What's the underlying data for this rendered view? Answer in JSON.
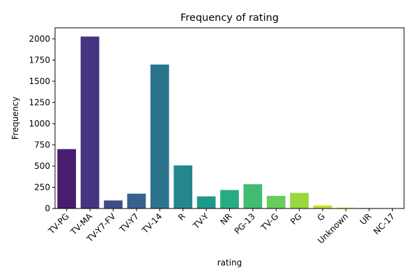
{
  "chart_data": {
    "type": "bar",
    "title": "Frequency of rating",
    "xlabel": "rating",
    "ylabel": "Frequency",
    "categories": [
      "TV-PG",
      "TV-MA",
      "TV-Y7-FV",
      "TV-Y7",
      "TV-14",
      "R",
      "TV-Y",
      "NR",
      "PG-13",
      "TV-G",
      "PG",
      "G",
      "Unknown",
      "UR",
      "NC-17"
    ],
    "values": [
      700,
      2027,
      95,
      175,
      1697,
      508,
      143,
      218,
      286,
      149,
      184,
      37,
      10,
      7,
      3
    ],
    "colors": [
      "#481c6e",
      "#453581",
      "#3d4d8a",
      "#34618d",
      "#2b748e",
      "#24878e",
      "#1f998a",
      "#25ac82",
      "#40bd72",
      "#67cc5c",
      "#97d83f",
      "#cae11f",
      "#fde725",
      "#fde725",
      "#fde725"
    ],
    "yticks": [
      0,
      250,
      500,
      750,
      1000,
      1250,
      1500,
      1750,
      2000
    ],
    "ylim": [
      0,
      2130
    ],
    "grid": false,
    "legend": "none"
  }
}
